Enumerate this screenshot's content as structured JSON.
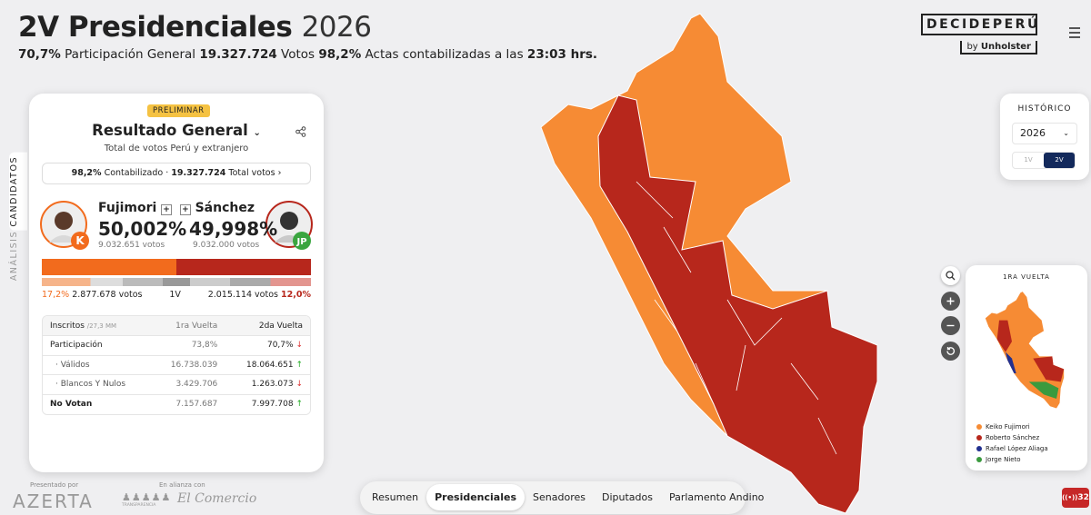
{
  "header": {
    "title": "2V Presidenciales",
    "year": "2026",
    "stats": {
      "participation": "70,7%",
      "participation_label": "Participación General",
      "votes": "19.327.724",
      "votes_label": "Votos",
      "actas": "98,2%",
      "actas_label": "Actas contabilizadas a las",
      "time": "23:03 hrs."
    }
  },
  "brand": {
    "name": "DECIDEPERÚ",
    "by": "by",
    "company": "Unholster"
  },
  "side_tabs": [
    "CANDIDATOS",
    "ANÁLISIS"
  ],
  "panel": {
    "badge": "PRELIMINAR",
    "title": "Resultado General",
    "subtitle": "Total de votos Perú y extranjero",
    "count": {
      "pct": "98,2%",
      "pct_label": "Contabilizado",
      "total": "19.327.724",
      "total_label": "Total votos"
    },
    "candidates": [
      {
        "name": "Fujimori",
        "pct": "50,002%",
        "votes": "9.032.651 votos"
      },
      {
        "name": "Sánchez",
        "pct": "49,998%",
        "votes": "9.032.000 votos"
      }
    ],
    "first_round": {
      "left_pct": "17,2%",
      "left_votes": "2.877.678 votos",
      "label": "1V",
      "right_votes": "2.015.114 votos",
      "right_pct": "12,0%"
    },
    "table": {
      "header": [
        "Inscritos",
        "/27,3 MM",
        "1ra Vuelta",
        "2da Vuelta"
      ],
      "rows": [
        [
          "Participación",
          "73,8%",
          "70,7%"
        ],
        [
          "· Válidos",
          "16.738.039",
          "18.064.651"
        ],
        [
          "· Blancos Y Nulos",
          "3.429.706",
          "1.263.073"
        ],
        [
          "No Votan",
          "7.157.687",
          "7.997.708"
        ]
      ]
    }
  },
  "footer": {
    "presented": "Presentado por",
    "sponsor": "AZERTA",
    "alliance": "En alianza con",
    "partner1": "TRANSPARENCIA",
    "partner2": "El Comercio"
  },
  "nav": [
    "Resumen",
    "Presidenciales",
    "Senadores",
    "Diputados",
    "Parlamento Andino"
  ],
  "historico": {
    "title": "HISTÓRICO",
    "year": "2026",
    "options": [
      "1V",
      "2V"
    ]
  },
  "minimap": {
    "title": "1RA VUELTA",
    "legend": [
      "Keiko Fujimori",
      "Roberto Sánchez",
      "Rafael López Aliaga",
      "Jorge Nieto"
    ]
  },
  "live": {
    "count": "32"
  }
}
